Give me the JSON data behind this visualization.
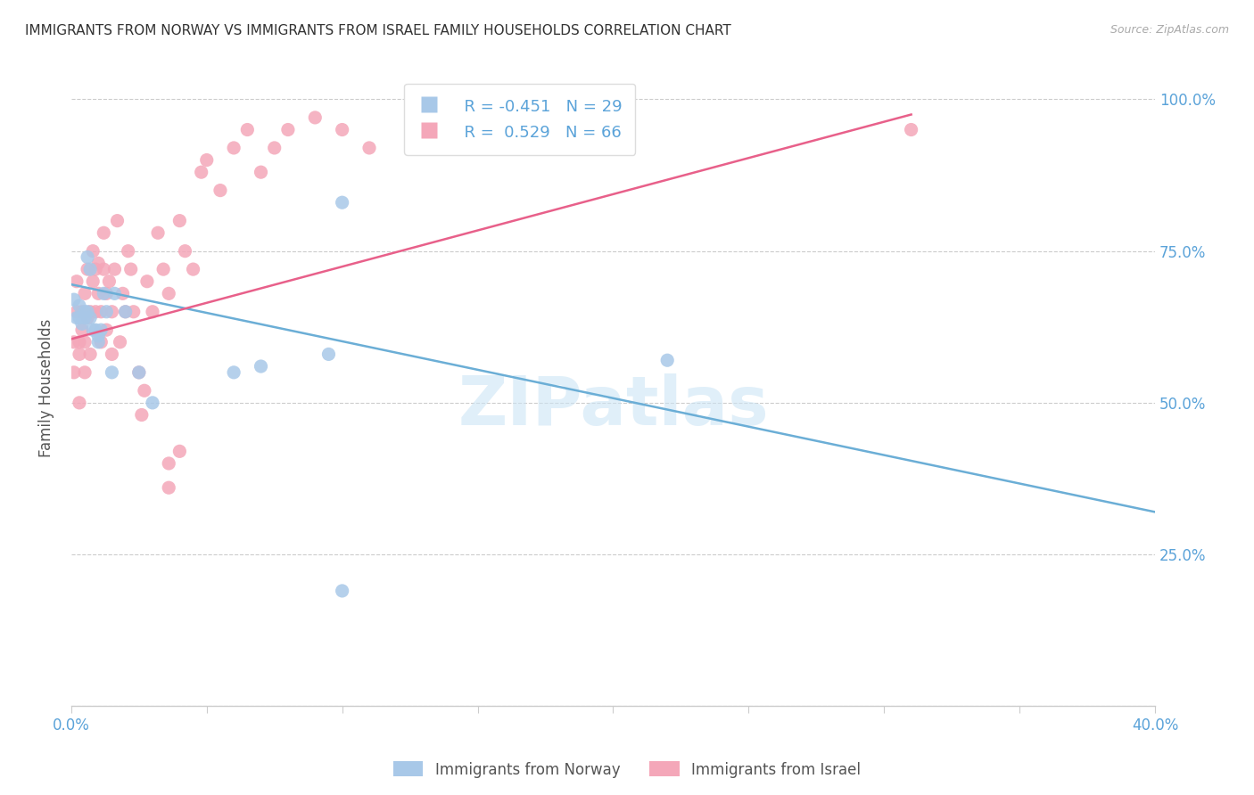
{
  "title": "IMMIGRANTS FROM NORWAY VS IMMIGRANTS FROM ISRAEL FAMILY HOUSEHOLDS CORRELATION CHART",
  "source": "Source: ZipAtlas.com",
  "ylabel": "Family Households",
  "yticks": [
    0.0,
    0.25,
    0.5,
    0.75,
    1.0
  ],
  "ytick_labels": [
    "",
    "25.0%",
    "50.0%",
    "75.0%",
    "100.0%"
  ],
  "xticks": [
    0.0,
    0.05,
    0.1,
    0.15,
    0.2,
    0.25,
    0.3,
    0.35,
    0.4
  ],
  "xlim": [
    0.0,
    0.4
  ],
  "ylim": [
    0.0,
    1.05
  ],
  "R_norway": -0.451,
  "N_norway": 29,
  "R_israel": 0.529,
  "N_israel": 66,
  "norway_color": "#a8c8e8",
  "norway_line_color": "#6baed6",
  "israel_color": "#f4a7b9",
  "israel_line_color": "#e8608a",
  "watermark": "ZIPatlas",
  "norway_scatter_x": [
    0.001,
    0.002,
    0.003,
    0.003,
    0.004,
    0.005,
    0.005,
    0.006,
    0.006,
    0.007,
    0.007,
    0.008,
    0.009,
    0.01,
    0.01,
    0.011,
    0.012,
    0.013,
    0.015,
    0.016,
    0.02,
    0.025,
    0.03,
    0.06,
    0.07,
    0.095,
    0.1,
    0.22,
    0.1
  ],
  "norway_scatter_y": [
    0.67,
    0.64,
    0.66,
    0.64,
    0.63,
    0.65,
    0.64,
    0.65,
    0.74,
    0.72,
    0.64,
    0.62,
    0.62,
    0.61,
    0.6,
    0.62,
    0.68,
    0.65,
    0.55,
    0.68,
    0.65,
    0.55,
    0.5,
    0.55,
    0.56,
    0.58,
    0.83,
    0.57,
    0.19
  ],
  "israel_scatter_x": [
    0.001,
    0.001,
    0.002,
    0.002,
    0.003,
    0.003,
    0.003,
    0.004,
    0.004,
    0.005,
    0.005,
    0.005,
    0.006,
    0.006,
    0.007,
    0.007,
    0.008,
    0.008,
    0.009,
    0.009,
    0.01,
    0.01,
    0.011,
    0.011,
    0.012,
    0.012,
    0.013,
    0.013,
    0.014,
    0.015,
    0.015,
    0.016,
    0.017,
    0.018,
    0.019,
    0.02,
    0.021,
    0.022,
    0.023,
    0.025,
    0.026,
    0.027,
    0.028,
    0.03,
    0.032,
    0.034,
    0.036,
    0.04,
    0.042,
    0.045,
    0.048,
    0.05,
    0.055,
    0.06,
    0.065,
    0.07,
    0.075,
    0.08,
    0.09,
    0.1,
    0.11,
    0.13,
    0.036,
    0.04,
    0.036,
    0.31
  ],
  "israel_scatter_y": [
    0.6,
    0.55,
    0.65,
    0.7,
    0.6,
    0.58,
    0.5,
    0.65,
    0.62,
    0.55,
    0.6,
    0.68,
    0.72,
    0.64,
    0.65,
    0.58,
    0.7,
    0.75,
    0.72,
    0.65,
    0.68,
    0.73,
    0.6,
    0.65,
    0.72,
    0.78,
    0.68,
    0.62,
    0.7,
    0.65,
    0.58,
    0.72,
    0.8,
    0.6,
    0.68,
    0.65,
    0.75,
    0.72,
    0.65,
    0.55,
    0.48,
    0.52,
    0.7,
    0.65,
    0.78,
    0.72,
    0.68,
    0.8,
    0.75,
    0.72,
    0.88,
    0.9,
    0.85,
    0.92,
    0.95,
    0.88,
    0.92,
    0.95,
    0.97,
    0.95,
    0.92,
    0.95,
    0.4,
    0.42,
    0.36,
    0.95
  ],
  "norway_line_x": [
    0.0,
    0.4
  ],
  "norway_line_y": [
    0.695,
    0.32
  ],
  "israel_line_x": [
    0.0,
    0.31
  ],
  "israel_line_y": [
    0.605,
    0.975
  ]
}
